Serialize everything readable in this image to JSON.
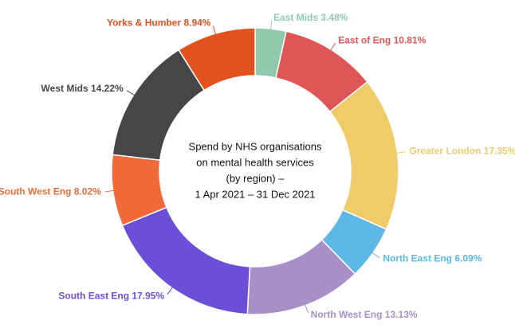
{
  "chart_data": {
    "type": "pie",
    "title": [
      "Spend by NHS organisations",
      "on mental health services",
      "(by region) –",
      "1 Apr 2021 – 31 Dec 2021"
    ],
    "categories": [
      "East Mids",
      "East of Eng",
      "Greater London",
      "North East Eng",
      "North West Eng",
      "South East Eng",
      "South West Eng",
      "West Mids",
      "Yorks & Humber"
    ],
    "values": [
      3.48,
      10.81,
      17.35,
      6.09,
      13.13,
      17.95,
      8.02,
      14.22,
      8.94
    ],
    "value_labels": [
      "3.48%",
      "10.81%",
      "17.35%",
      "6.09%",
      "13.13%",
      "17.95%",
      "8.02%",
      "14.22%",
      "8.94%"
    ],
    "colors": [
      "#8fc9ae",
      "#e05555",
      "#f0cb69",
      "#5db8e6",
      "#a98fc7",
      "#6a4fd8",
      "#f26a38",
      "#464646",
      "#e2521f"
    ]
  }
}
